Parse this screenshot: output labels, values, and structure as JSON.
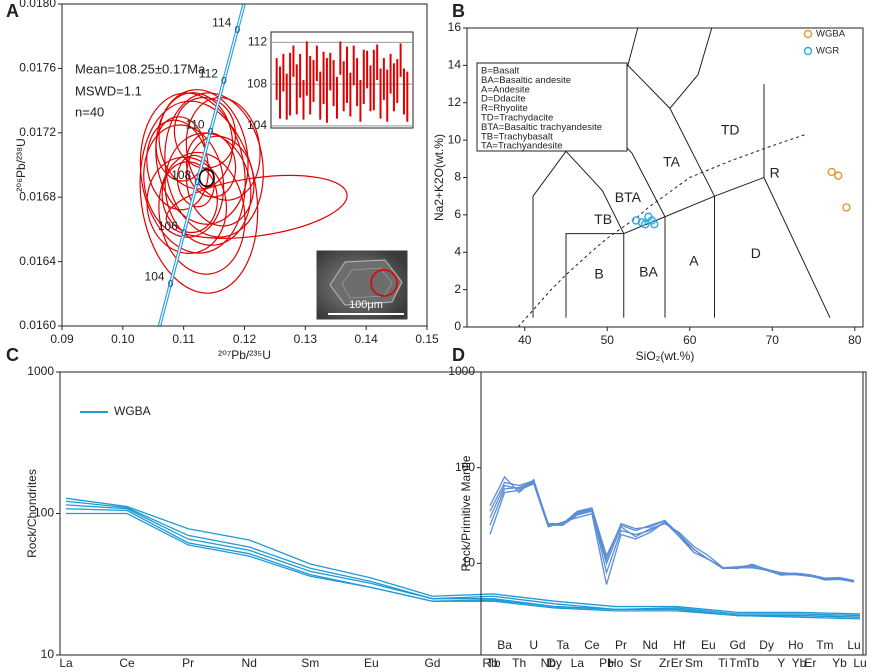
{
  "chart_data": [
    {
      "type": "concordia",
      "panel_label": "A",
      "xlabel": "²⁰⁷Pb/²³⁵U",
      "ylabel": "²⁰⁶Pb/²³⁸U",
      "xlim": [
        0.09,
        0.15
      ],
      "ylim": [
        0.016,
        0.018
      ],
      "xticks": [
        0.09,
        {
          "value": 0.1,
          "label": "0.10"
        },
        0.11,
        0.12,
        0.13,
        0.14,
        0.15
      ],
      "yticks": [
        {
          "value": 0.016,
          "label": "0.0160"
        },
        0.0164,
        0.0168,
        0.0172,
        0.0176,
        {
          "value": 0.018,
          "label": "0.0180"
        }
      ],
      "annotations": [
        "Mean=108.25±0.17Ma",
        "MSWD=1.1",
        "n=40"
      ],
      "concordia": {
        "color": "#2aa0e0",
        "x": [
          0.10567,
          0.10785,
          0.11004,
          0.11223,
          0.11442,
          0.11662,
          0.11882,
          0.12103
        ],
        "y": [
          0.015949,
          0.016264,
          0.016579,
          0.016895,
          0.01721,
          0.017526,
          0.017842,
          0.018157
        ],
        "labels": [
          null,
          104,
          106,
          108,
          110,
          112,
          114,
          null
        ]
      },
      "ellipses": {
        "color": "#e00000",
        "x": [
          0.1125,
          0.1115,
          0.113,
          0.11,
          0.115,
          0.112,
          0.114,
          0.109,
          0.116,
          0.111,
          0.1135,
          0.1105,
          0.1165,
          0.122,
          0.113,
          0.1095,
          0.1145,
          0.112
        ],
        "y": [
          0.0168,
          0.01695,
          0.01705,
          0.0169,
          0.017,
          0.01715,
          0.01685,
          0.017,
          0.0169,
          0.0168,
          0.0172,
          0.01675,
          0.0171,
          0.01674,
          0.0167,
          0.0171,
          0.017,
          0.0169
        ],
        "x_err": [
          0.0095,
          0.0085,
          0.0075,
          0.0065,
          0.008,
          0.006,
          0.007,
          0.005,
          0.0055,
          0.0045,
          0.005,
          0.0065,
          0.006,
          0.015,
          0.007,
          0.004,
          0.004,
          0.003
        ],
        "y_err": [
          0.0006,
          0.0005,
          0.00042,
          0.00035,
          0.00045,
          0.0003,
          0.00035,
          0.00028,
          0.00028,
          0.00022,
          0.00022,
          0.0003,
          0.00032,
          0.00018,
          0.00038,
          0.0002,
          0.0002,
          0.00016
        ]
      },
      "mean_ellipse": {
        "color": "#000000",
        "x": 0.1138,
        "y": 0.01692,
        "x_err": 0.0012,
        "y_err": 4e-05
      },
      "inset": {
        "type": "errorbar",
        "color": "#e00000",
        "ylim": [
          103.8,
          113
        ],
        "yticks": [
          104,
          108,
          112
        ],
        "values": [
          108.5,
          107.2,
          109.1,
          106.8,
          108.0,
          110.2,
          107.5,
          108.8,
          106.5,
          109.5,
          107.9,
          108.3,
          110.0,
          106.9,
          108.6,
          107.4,
          109.2,
          108.1,
          106.7,
          110.5,
          107.8,
          108.9,
          107.0,
          109.8,
          108.2,
          106.4,
          108.7,
          109.4,
          107.6,
          108.4,
          110.1,
          107.1,
          108.5,
          106.9,
          109.0,
          107.7,
          108.3,
          110.3,
          107.3,
          106.8
        ],
        "errors": [
          2.0,
          2.5,
          1.8,
          2.2,
          3.0,
          1.5,
          2.4,
          2.1,
          1.9,
          2.6,
          2.8,
          2.0,
          1.7,
          2.3,
          2.5,
          3.1,
          1.8,
          2.2,
          2.0,
          1.6,
          2.4,
          2.7,
          2.1,
          1.9,
          2.3,
          2.0,
          2.6,
          1.8,
          2.2,
          2.9,
          1.7,
          2.4,
          2.0,
          2.5,
          1.9,
          2.3,
          2.1,
          1.6,
          2.2,
          2.4
        ]
      },
      "image_caption": "100μm"
    },
    {
      "type": "scatter",
      "panel_label": "B",
      "xlabel": "SiO₂(wt.%)",
      "ylabel": "Na2+K2O(wt.%)",
      "xlim": [
        33,
        81
      ],
      "ylim": [
        0,
        16
      ],
      "xticks": [
        40,
        50,
        60,
        70,
        80
      ],
      "yticks": [
        0,
        2,
        4,
        6,
        8,
        10,
        12,
        14,
        16
      ],
      "legend": "top-right",
      "series": [
        {
          "name": "WGBA",
          "color": "#e8952a",
          "x": [
            77.2,
            78,
            79
          ],
          "y": [
            8.3,
            8.1,
            6.4
          ]
        },
        {
          "name": "WGR",
          "color": "#2aa8e0",
          "x": [
            53.5,
            54.6,
            55.0,
            55.4,
            55.7,
            54.2
          ],
          "y": [
            5.7,
            5.5,
            5.9,
            5.7,
            5.5,
            5.6
          ]
        }
      ],
      "fields": [
        "B",
        "BA",
        "A",
        "D",
        "TB",
        "BTA",
        "TA",
        "TD",
        "R"
      ],
      "notes": [
        "B=Basalt",
        "BA=Basaltic andesite",
        "A=Andesite",
        "D=Ddacite",
        "R=Rhyolite",
        "TD=Trachydacite",
        "BTA=Basaltic trachyandesite",
        "TB=Trachybasalt",
        "TA=Trachyandesite"
      ]
    },
    {
      "type": "line",
      "panel_label": "C",
      "ylabel": "Rock/Chondrites",
      "log_y": true,
      "ylim": [
        10,
        1000
      ],
      "yticks": [
        10,
        100,
        1000
      ],
      "legend": "top-left",
      "categories": [
        "La",
        "Ce",
        "Pr",
        "Nd",
        "Sm",
        "Eu",
        "Gd",
        "Tb",
        "Dy",
        "Ho",
        "Er",
        "Tm",
        "Yb",
        "Lu"
      ],
      "series": [
        {
          "name": "WGBA",
          "color": "#1f9ad6",
          "values": [
            128,
            112,
            78,
            65,
            44,
            35,
            26,
            27,
            24,
            22,
            22,
            20,
            20,
            19.5
          ]
        },
        {
          "color": "#1f9ad6",
          "values": [
            122,
            110,
            70,
            58,
            41,
            33,
            25,
            26,
            23,
            21,
            21.5,
            19.5,
            19.5,
            19
          ]
        },
        {
          "color": "#1f9ad6",
          "values": [
            115,
            108,
            66,
            55,
            39,
            32,
            25,
            25,
            22,
            21,
            21,
            19,
            19,
            18.5
          ]
        },
        {
          "color": "#1f9ad6",
          "values": [
            108,
            105,
            62,
            52,
            37,
            30,
            24,
            24.5,
            22,
            21,
            21,
            19,
            19,
            18.5
          ]
        },
        {
          "color": "#1f9ad6",
          "values": [
            100,
            100,
            60,
            50,
            36,
            30,
            24,
            24,
            21.5,
            20.5,
            20.5,
            19,
            18.5,
            18
          ]
        }
      ]
    },
    {
      "type": "line",
      "panel_label": "D",
      "ylabel": "Rock/Primitive Mantle",
      "log_y": true,
      "ylim": [
        1.1,
        1000
      ],
      "yticks": [
        10,
        100,
        1000
      ],
      "categories": [
        "Rb",
        "Ba",
        "Th",
        "U",
        "Nb",
        "Ta",
        "La",
        "Ce",
        "Pb",
        "Pr",
        "Sr",
        "Nd",
        "Zr",
        "Hf",
        "Sm",
        "Eu",
        "Ti",
        "Gd",
        "Tb",
        "Dy",
        "Y",
        "Ho",
        "Er",
        "Tm",
        "Yb",
        "Lu"
      ],
      "series": [
        {
          "color": "#5b8ed6",
          "values": [
            40,
            80,
            55,
            75,
            25,
            26,
            35,
            38,
            12,
            25,
            22,
            25,
            28,
            20,
            14,
            11,
            9,
            9,
            9,
            8.5,
            7.5,
            7.8,
            7.5,
            6.8,
            7,
            6.5
          ]
        },
        {
          "color": "#5b8ed6",
          "values": [
            30,
            65,
            60,
            70,
            26,
            25,
            33,
            36,
            8,
            22,
            20,
            22,
            27,
            19,
            13,
            11,
            9,
            9.2,
            9.5,
            8.7,
            7.8,
            7.9,
            7.6,
            7,
            7.1,
            6.6
          ]
        },
        {
          "color": "#5b8ed6",
          "values": [
            25,
            60,
            62,
            72,
            25,
            25,
            32,
            35,
            10,
            24,
            19,
            23,
            26,
            21,
            15,
            12,
            9,
            8.8,
            9.8,
            8.6,
            8,
            7.7,
            7.4,
            6.7,
            6.8,
            6.4
          ]
        },
        {
          "color": "#5b8ed6",
          "values": [
            20,
            55,
            58,
            68,
            24,
            27,
            30,
            33,
            6,
            20,
            18,
            21,
            27,
            20,
            13,
            11,
            8.8,
            9,
            9.2,
            8.4,
            7.6,
            7.6,
            7.3,
            6.9,
            6.9,
            6.5
          ]
        },
        {
          "color": "#5b8ed6",
          "values": [
            35,
            70,
            65,
            73,
            26,
            26,
            34,
            37,
            11,
            26,
            23,
            24,
            28,
            20,
            14,
            11,
            9,
            9,
            9,
            8.5,
            7.7,
            7.8,
            7.5,
            7,
            7,
            6.6
          ]
        }
      ]
    }
  ]
}
